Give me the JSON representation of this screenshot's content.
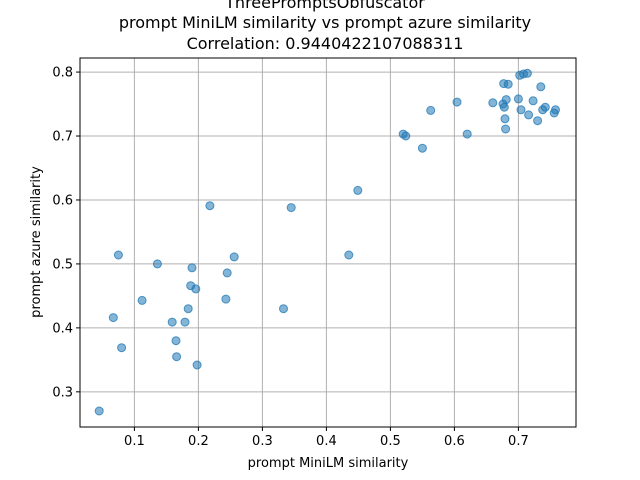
{
  "chart_data": {
    "type": "scatter",
    "title_lines": [
      "ThreePromptsObfuscator",
      "prompt MiniLM similarity vs prompt azure similarity",
      "Correlation: 0.9440422107088311"
    ],
    "xlabel": "prompt MiniLM similarity",
    "ylabel": "prompt azure similarity",
    "xlim": [
      0.015,
      0.79
    ],
    "ylim": [
      0.245,
      0.822
    ],
    "xticks": [
      "0.1",
      "0.2",
      "0.3",
      "0.4",
      "0.5",
      "0.6",
      "0.7"
    ],
    "yticks": [
      "0.3",
      "0.4",
      "0.5",
      "0.6",
      "0.7",
      "0.8"
    ],
    "grid": true,
    "colors": {
      "points": "#1f77b4"
    },
    "points": [
      [
        0.045,
        0.27
      ],
      [
        0.067,
        0.416
      ],
      [
        0.075,
        0.514
      ],
      [
        0.08,
        0.369
      ],
      [
        0.112,
        0.443
      ],
      [
        0.136,
        0.5
      ],
      [
        0.159,
        0.409
      ],
      [
        0.165,
        0.38
      ],
      [
        0.166,
        0.355
      ],
      [
        0.179,
        0.409
      ],
      [
        0.184,
        0.43
      ],
      [
        0.188,
        0.466
      ],
      [
        0.19,
        0.494
      ],
      [
        0.196,
        0.461
      ],
      [
        0.198,
        0.342
      ],
      [
        0.218,
        0.591
      ],
      [
        0.243,
        0.445
      ],
      [
        0.245,
        0.486
      ],
      [
        0.256,
        0.511
      ],
      [
        0.333,
        0.43
      ],
      [
        0.345,
        0.588
      ],
      [
        0.435,
        0.514
      ],
      [
        0.449,
        0.615
      ],
      [
        0.52,
        0.703
      ],
      [
        0.524,
        0.7
      ],
      [
        0.55,
        0.681
      ],
      [
        0.563,
        0.74
      ],
      [
        0.604,
        0.753
      ],
      [
        0.62,
        0.703
      ],
      [
        0.66,
        0.752
      ],
      [
        0.676,
        0.75
      ],
      [
        0.677,
        0.782
      ],
      [
        0.678,
        0.745
      ],
      [
        0.679,
        0.727
      ],
      [
        0.68,
        0.711
      ],
      [
        0.681,
        0.757
      ],
      [
        0.684,
        0.781
      ],
      [
        0.7,
        0.758
      ],
      [
        0.702,
        0.795
      ],
      [
        0.704,
        0.741
      ],
      [
        0.708,
        0.797
      ],
      [
        0.714,
        0.798
      ],
      [
        0.716,
        0.733
      ],
      [
        0.723,
        0.755
      ],
      [
        0.73,
        0.724
      ],
      [
        0.735,
        0.777
      ],
      [
        0.738,
        0.741
      ],
      [
        0.742,
        0.745
      ],
      [
        0.756,
        0.736
      ],
      [
        0.758,
        0.741
      ]
    ]
  }
}
